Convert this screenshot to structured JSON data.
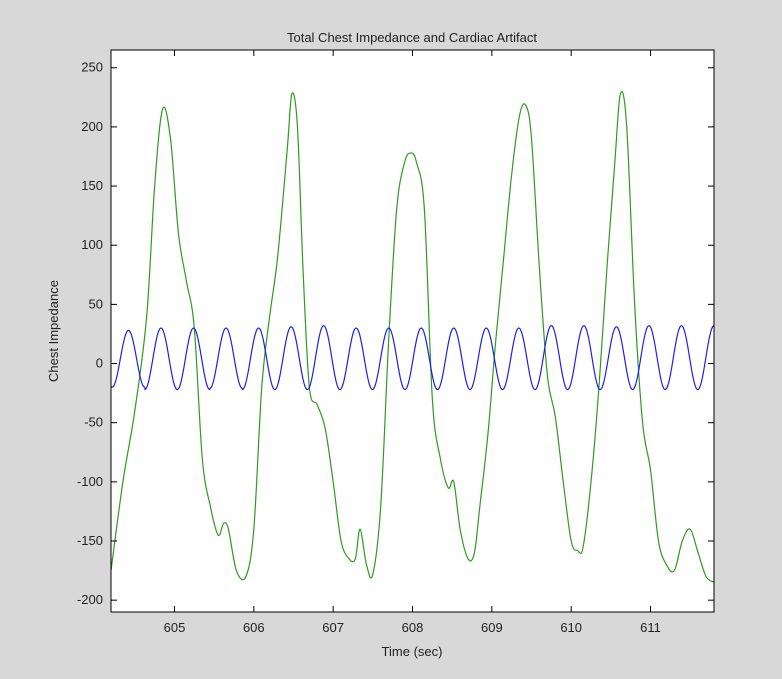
{
  "colors": {
    "figure_bg": "#d8d8d8",
    "axes_bg": "#ffffff",
    "axis": "#000000",
    "cardiac": "#1f1fe6",
    "impedance": "#2f9a1f"
  },
  "chart_data": {
    "type": "line",
    "title": "Total Chest Impedance and Cardiac Artifact",
    "xlabel": "Time (sec)",
    "ylabel": "Chest Impedance",
    "xlim": [
      604.2,
      611.8
    ],
    "ylim": [
      -210,
      265
    ],
    "xticks": [
      605,
      606,
      607,
      608,
      609,
      610,
      611
    ],
    "yticks": [
      -200,
      -150,
      -100,
      -50,
      0,
      50,
      100,
      150,
      200,
      250
    ],
    "grid": false,
    "legend": "none",
    "series": [
      {
        "color": "#2f9a1f",
        "x": [
          604.2,
          604.35,
          604.5,
          604.65,
          604.75,
          604.85,
          604.95,
          605.05,
          605.15,
          605.25,
          605.35,
          605.45,
          605.55,
          605.62,
          605.68,
          605.78,
          605.9,
          606.0,
          606.1,
          606.2,
          606.3,
          606.42,
          606.48,
          606.55,
          606.62,
          606.7,
          606.8,
          606.9,
          607.0,
          607.1,
          607.2,
          607.28,
          607.34,
          607.42,
          607.5,
          607.6,
          607.7,
          607.8,
          607.9,
          607.98,
          608.05,
          608.15,
          608.25,
          608.35,
          608.45,
          608.52,
          608.6,
          608.7,
          608.78,
          608.85,
          608.95,
          609.05,
          609.15,
          609.25,
          609.35,
          609.43,
          609.5,
          609.6,
          609.7,
          609.8,
          609.9,
          610.0,
          610.08,
          610.15,
          610.25,
          610.35,
          610.45,
          610.55,
          610.62,
          610.7,
          610.8,
          610.9,
          611.0,
          611.1,
          611.2,
          611.3,
          611.4,
          611.5,
          611.6,
          611.7,
          611.8
        ],
        "y": [
          -175,
          -100,
          -40,
          40,
          150,
          215,
          190,
          110,
          70,
          30,
          -80,
          -120,
          -145,
          -135,
          -140,
          -175,
          -180,
          -140,
          -20,
          40,
          90,
          180,
          228,
          200,
          80,
          -20,
          -35,
          -55,
          -100,
          -150,
          -165,
          -165,
          -140,
          -170,
          -178,
          -120,
          20,
          130,
          170,
          178,
          170,
          130,
          -30,
          -80,
          -105,
          -100,
          -140,
          -165,
          -160,
          -120,
          -60,
          20,
          90,
          160,
          210,
          218,
          190,
          80,
          -10,
          -45,
          -100,
          -150,
          -158,
          -155,
          -100,
          -20,
          80,
          170,
          228,
          200,
          50,
          -50,
          -90,
          -150,
          -170,
          -175,
          -150,
          -140,
          -160,
          -180,
          -185
        ]
      },
      {
        "color": "#1f1fe6",
        "period": 0.41,
        "phase_peak_x": 604.42,
        "max_values": [
          28,
          30,
          30,
          30,
          30,
          31,
          32,
          30,
          30,
          30,
          30,
          30,
          30,
          32,
          32,
          31,
          32,
          32,
          32
        ],
        "min_values": [
          -20,
          -22,
          -22,
          -21,
          -22,
          -22,
          -22,
          -22,
          -22,
          -22,
          -22,
          -22,
          -22,
          -22,
          -22,
          -22,
          -22,
          -22,
          -22
        ]
      }
    ]
  }
}
